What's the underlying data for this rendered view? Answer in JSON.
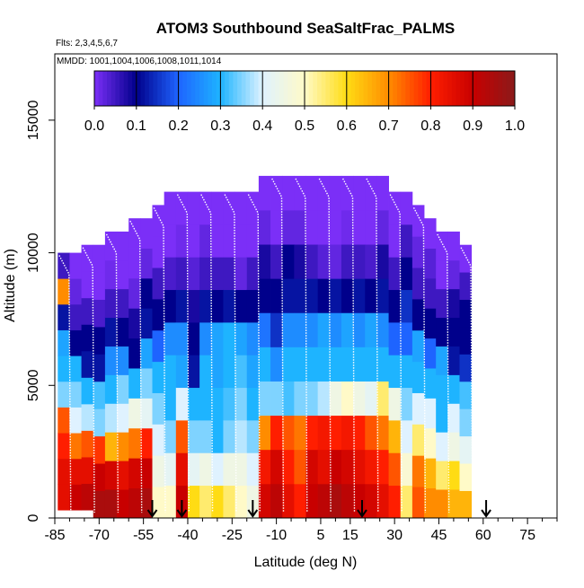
{
  "chart_data": {
    "type": "heatmap",
    "title": "ATOM3 Southbound SeaSaltFrac_PALMS",
    "flights_note": "Flts: 2,3,4,5,6,7",
    "dates_note": "MMDD: 1001,1004,1006,1008,1011,1014",
    "xlabel": "Latitude (deg N)",
    "ylabel": "Altitude (m)",
    "xlim": [
      -85,
      85
    ],
    "ylim": [
      0,
      17500
    ],
    "x_ticks_labeled": [
      -85,
      -70,
      -55,
      -40,
      -25,
      -10,
      5,
      15,
      30,
      45,
      60,
      75
    ],
    "x_tick_labels": [
      "-85",
      "-70",
      "-55",
      "-40",
      "-25",
      "-10",
      "5",
      "15",
      "30",
      "45",
      "60",
      "75"
    ],
    "y_ticks": [
      0,
      5000,
      10000,
      15000
    ],
    "y_tick_labels": [
      "0",
      "5000",
      "10000",
      "15000"
    ],
    "colorbar": {
      "range": [
        0.0,
        1.0
      ],
      "ticks": [
        0.0,
        0.1,
        0.2,
        0.3,
        0.4,
        0.5,
        0.6,
        0.7,
        0.8,
        0.9,
        1.0
      ],
      "tick_labels": [
        "0.0",
        "0.1",
        "0.2",
        "0.3",
        "0.4",
        "0.5",
        "0.6",
        "0.7",
        "0.8",
        "0.9",
        "1.0"
      ],
      "colors": [
        "#7b2ff7",
        "#00008b",
        "#1e64ff",
        "#1eb4ff",
        "#dff2ff",
        "#fffac8",
        "#ffdc14",
        "#ff8c00",
        "#ff1e00",
        "#c80000",
        "#8b1a1a"
      ]
    },
    "columns": [
      {
        "lat": -82,
        "top": 10000,
        "bottom": 300,
        "values": [
          0.85,
          0.85,
          0.8,
          0.75,
          0.35,
          0.3,
          0.28,
          0.12,
          0.7,
          0.05
        ]
      },
      {
        "lat": -78,
        "top": 10000,
        "bottom": 300,
        "values": [
          0.9,
          0.85,
          0.72,
          0.4,
          0.35,
          0.3,
          0.1,
          0.05,
          0.02,
          0.0
        ]
      },
      {
        "lat": -74,
        "top": 10300,
        "bottom": 300,
        "values": [
          0.92,
          0.85,
          0.75,
          0.38,
          0.3,
          0.12,
          0.1,
          0.05,
          0.0,
          0.0
        ]
      },
      {
        "lat": -70,
        "top": 10300,
        "bottom": 0,
        "values": [
          0.95,
          0.9,
          0.78,
          0.35,
          0.32,
          0.12,
          0.1,
          0.04,
          0.0,
          0.0
        ]
      },
      {
        "lat": -66,
        "top": 10800,
        "bottom": 0,
        "values": [
          0.95,
          0.88,
          0.65,
          0.38,
          0.3,
          0.25,
          0.12,
          0.05,
          0.01,
          0.0
        ]
      },
      {
        "lat": -62,
        "top": 10800,
        "bottom": 0,
        "values": [
          0.9,
          0.85,
          0.7,
          0.4,
          0.35,
          0.25,
          0.1,
          0.05,
          0.0,
          0.0
        ]
      },
      {
        "lat": -58,
        "top": 11300,
        "bottom": 0,
        "values": [
          0.92,
          0.88,
          0.72,
          0.45,
          0.3,
          0.1,
          0.08,
          0.02,
          0.0,
          0.0
        ]
      },
      {
        "lat": -54,
        "top": 11300,
        "bottom": 0,
        "values": [
          0.95,
          0.9,
          0.8,
          0.42,
          0.35,
          0.28,
          0.12,
          0.1,
          0.02,
          0.0
        ]
      },
      {
        "lat": -50,
        "top": 11800,
        "bottom": 0,
        "values": [
          0.5,
          0.45,
          0.4,
          0.35,
          0.3,
          0.2,
          0.1,
          0.05,
          0.0,
          0.0
        ]
      },
      {
        "lat": -46,
        "top": 12300,
        "bottom": 0,
        "values": [
          0.5,
          0.42,
          0.35,
          0.3,
          0.3,
          0.25,
          0.1,
          0.04,
          0.0,
          0.0
        ]
      },
      {
        "lat": -42,
        "top": 12300,
        "bottom": 0,
        "values": [
          0.9,
          0.85,
          0.75,
          0.4,
          0.28,
          0.25,
          0.12,
          0.05,
          0.01,
          0.0
        ]
      },
      {
        "lat": -38,
        "top": 12300,
        "bottom": 0,
        "values": [
          0.6,
          0.42,
          0.35,
          0.3,
          0.12,
          0.1,
          0.08,
          0.03,
          0.0,
          0.0
        ]
      },
      {
        "lat": -34,
        "top": 12300,
        "bottom": 0,
        "values": [
          0.55,
          0.45,
          0.35,
          0.3,
          0.3,
          0.25,
          0.12,
          0.05,
          0.02,
          0.0
        ]
      },
      {
        "lat": -30,
        "top": 12300,
        "bottom": 0,
        "values": [
          0.6,
          0.4,
          0.3,
          0.3,
          0.28,
          0.28,
          0.1,
          0.05,
          0.0,
          0.0
        ]
      },
      {
        "lat": -26,
        "top": 12300,
        "bottom": 0,
        "values": [
          0.55,
          0.45,
          0.35,
          0.32,
          0.3,
          0.3,
          0.12,
          0.05,
          0.0,
          0.0
        ]
      },
      {
        "lat": -22,
        "top": 12300,
        "bottom": 0,
        "values": [
          0.5,
          0.45,
          0.38,
          0.35,
          0.32,
          0.28,
          0.1,
          0.02,
          0.0,
          0.0
        ]
      },
      {
        "lat": -18,
        "top": 12300,
        "bottom": 0,
        "values": [
          0.45,
          0.4,
          0.35,
          0.3,
          0.28,
          0.25,
          0.1,
          0.05,
          0.0,
          0.0
        ]
      },
      {
        "lat": -14,
        "top": 12900,
        "bottom": 0,
        "values": [
          0.88,
          0.82,
          0.7,
          0.35,
          0.3,
          0.22,
          0.1,
          0.08,
          0.02,
          0.0
        ]
      },
      {
        "lat": -10,
        "top": 12900,
        "bottom": 0,
        "values": [
          0.92,
          0.88,
          0.8,
          0.35,
          0.25,
          0.15,
          0.1,
          0.05,
          0.0,
          0.0
        ]
      },
      {
        "lat": -6,
        "top": 12900,
        "bottom": 0,
        "values": [
          0.85,
          0.8,
          0.75,
          0.32,
          0.3,
          0.25,
          0.12,
          0.1,
          0.02,
          0.0
        ]
      },
      {
        "lat": -2,
        "top": 12900,
        "bottom": 0,
        "values": [
          0.8,
          0.75,
          0.72,
          0.35,
          0.3,
          0.25,
          0.12,
          0.08,
          0.02,
          0.0
        ]
      },
      {
        "lat": 2,
        "top": 12900,
        "bottom": 0,
        "values": [
          0.9,
          0.88,
          0.8,
          0.35,
          0.3,
          0.25,
          0.12,
          0.05,
          0.0,
          0.0
        ]
      },
      {
        "lat": 6,
        "top": 12900,
        "bottom": 0,
        "values": [
          0.92,
          0.85,
          0.82,
          0.38,
          0.3,
          0.28,
          0.1,
          0.03,
          0.0,
          0.0
        ]
      },
      {
        "lat": 10,
        "top": 12900,
        "bottom": 0,
        "values": [
          0.95,
          0.9,
          0.8,
          0.45,
          0.3,
          0.25,
          0.12,
          0.02,
          0.0,
          0.0
        ]
      },
      {
        "lat": 14,
        "top": 12900,
        "bottom": 0,
        "values": [
          0.92,
          0.88,
          0.82,
          0.5,
          0.3,
          0.28,
          0.1,
          0.05,
          0.01,
          0.0
        ]
      },
      {
        "lat": 18,
        "top": 12900,
        "bottom": 0,
        "values": [
          0.9,
          0.85,
          0.8,
          0.45,
          0.3,
          0.25,
          0.12,
          0.05,
          0.0,
          0.0
        ]
      },
      {
        "lat": 22,
        "top": 12900,
        "bottom": 0,
        "values": [
          0.88,
          0.82,
          0.75,
          0.42,
          0.3,
          0.28,
          0.1,
          0.04,
          0.0,
          0.0
        ]
      },
      {
        "lat": 26,
        "top": 12900,
        "bottom": 0,
        "values": [
          0.85,
          0.8,
          0.72,
          0.55,
          0.3,
          0.25,
          0.12,
          0.08,
          0.02,
          0.0
        ]
      },
      {
        "lat": 30,
        "top": 12300,
        "bottom": 0,
        "values": [
          0.8,
          0.75,
          0.65,
          0.45,
          0.3,
          0.2,
          0.1,
          0.05,
          0.0,
          0.0
        ]
      },
      {
        "lat": 34,
        "top": 12300,
        "bottom": 0,
        "values": [
          0.55,
          0.48,
          0.4,
          0.35,
          0.3,
          0.2,
          0.15,
          0.1,
          0.05,
          0.0
        ]
      },
      {
        "lat": 38,
        "top": 11800,
        "bottom": 0,
        "values": [
          0.75,
          0.72,
          0.55,
          0.4,
          0.3,
          0.28,
          0.1,
          0.05,
          0.02,
          0.0
        ]
      },
      {
        "lat": 42,
        "top": 11300,
        "bottom": 0,
        "values": [
          0.7,
          0.65,
          0.5,
          0.4,
          0.3,
          0.2,
          0.1,
          0.05,
          0.03,
          0.0
        ]
      },
      {
        "lat": 46,
        "top": 10800,
        "bottom": 0,
        "values": [
          0.7,
          0.55,
          0.4,
          0.3,
          0.3,
          0.28,
          0.1,
          0.05,
          0.0,
          0.0
        ]
      },
      {
        "lat": 50,
        "top": 10800,
        "bottom": 0,
        "values": [
          0.65,
          0.6,
          0.45,
          0.4,
          0.3,
          0.12,
          0.1,
          0.08,
          0.02,
          0.0
        ]
      },
      {
        "lat": 54,
        "top": 10300,
        "bottom": 0,
        "values": [
          0.65,
          0.5,
          0.42,
          0.35,
          0.32,
          0.15,
          0.1,
          0.1,
          0.05,
          0.0
        ]
      }
    ],
    "arrows_latitude": [
      -52,
      -42,
      -18,
      19,
      61
    ]
  }
}
